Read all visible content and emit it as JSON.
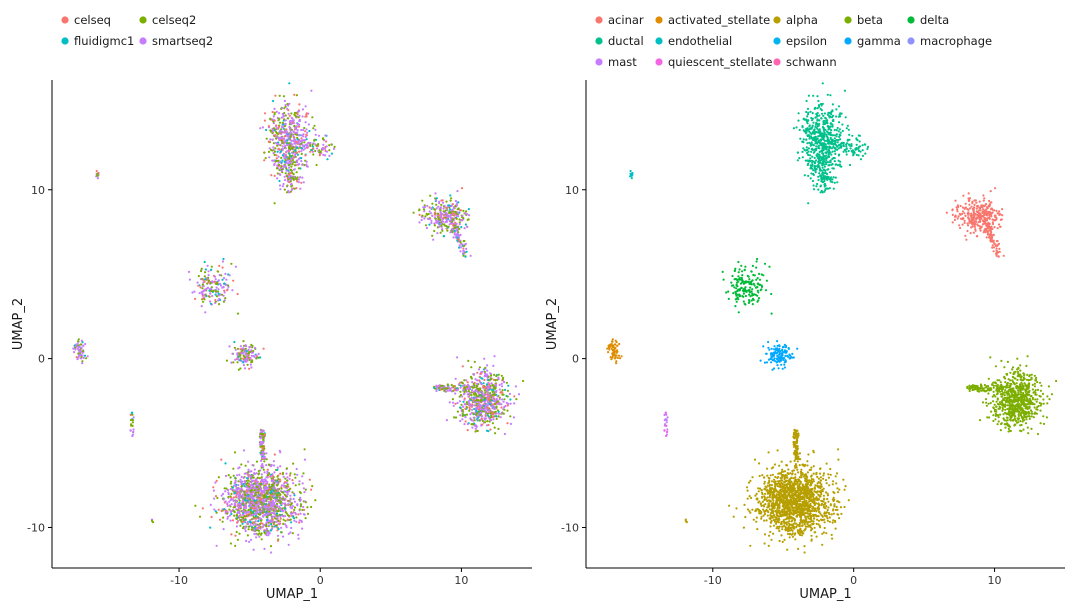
{
  "chart_data": [
    {
      "type": "scatter",
      "title": "",
      "xlabel": "UMAP_1",
      "ylabel": "UMAP_2",
      "xlim": [
        -19,
        15
      ],
      "ylim": [
        -12.4,
        16.5
      ],
      "xticks": [
        -10,
        0,
        10
      ],
      "xtick_labels": [
        "-10",
        "0",
        "10"
      ],
      "yticks": [
        -10,
        0,
        10
      ],
      "ytick_labels": [
        "-10",
        "0",
        "10"
      ],
      "grid": false,
      "legend_position": "top",
      "color_by": "tech",
      "legend": [
        {
          "label": "celseq",
          "color": "#F8766D"
        },
        {
          "label": "celseq2",
          "color": "#7CAE00"
        },
        {
          "label": "fluidigmc1",
          "color": "#00BFC4"
        },
        {
          "label": "smartseq2",
          "color": "#C77CFF"
        }
      ]
    },
    {
      "type": "scatter",
      "title": "",
      "xlabel": "UMAP_1",
      "ylabel": "UMAP_2",
      "xlim": [
        -19,
        15
      ],
      "ylim": [
        -12.4,
        16.5
      ],
      "xticks": [
        -10,
        0,
        10
      ],
      "xtick_labels": [
        "-10",
        "0",
        "10"
      ],
      "yticks": [
        -10,
        0,
        10
      ],
      "ytick_labels": [
        "-10",
        "0",
        "10"
      ],
      "grid": false,
      "legend_position": "top",
      "color_by": "celltype",
      "legend": [
        {
          "label": "acinar",
          "color": "#F8766D"
        },
        {
          "label": "activated_stellate",
          "color": "#DE8C00"
        },
        {
          "label": "alpha",
          "color": "#B79F00"
        },
        {
          "label": "beta",
          "color": "#7CAE00"
        },
        {
          "label": "delta",
          "color": "#00BA38"
        },
        {
          "label": "ductal",
          "color": "#00C08B"
        },
        {
          "label": "endothelial",
          "color": "#00BFC4"
        },
        {
          "label": "epsilon",
          "color": "#00B4F0"
        },
        {
          "label": "gamma",
          "color": "#00A9FF"
        },
        {
          "label": "macrophage",
          "color": "#8F91FF"
        },
        {
          "label": "mast",
          "color": "#C77CFF"
        },
        {
          "label": "quiescent_stellate",
          "color": "#F564E3"
        },
        {
          "label": "schwann",
          "color": "#FF64B0"
        }
      ]
    }
  ]
}
